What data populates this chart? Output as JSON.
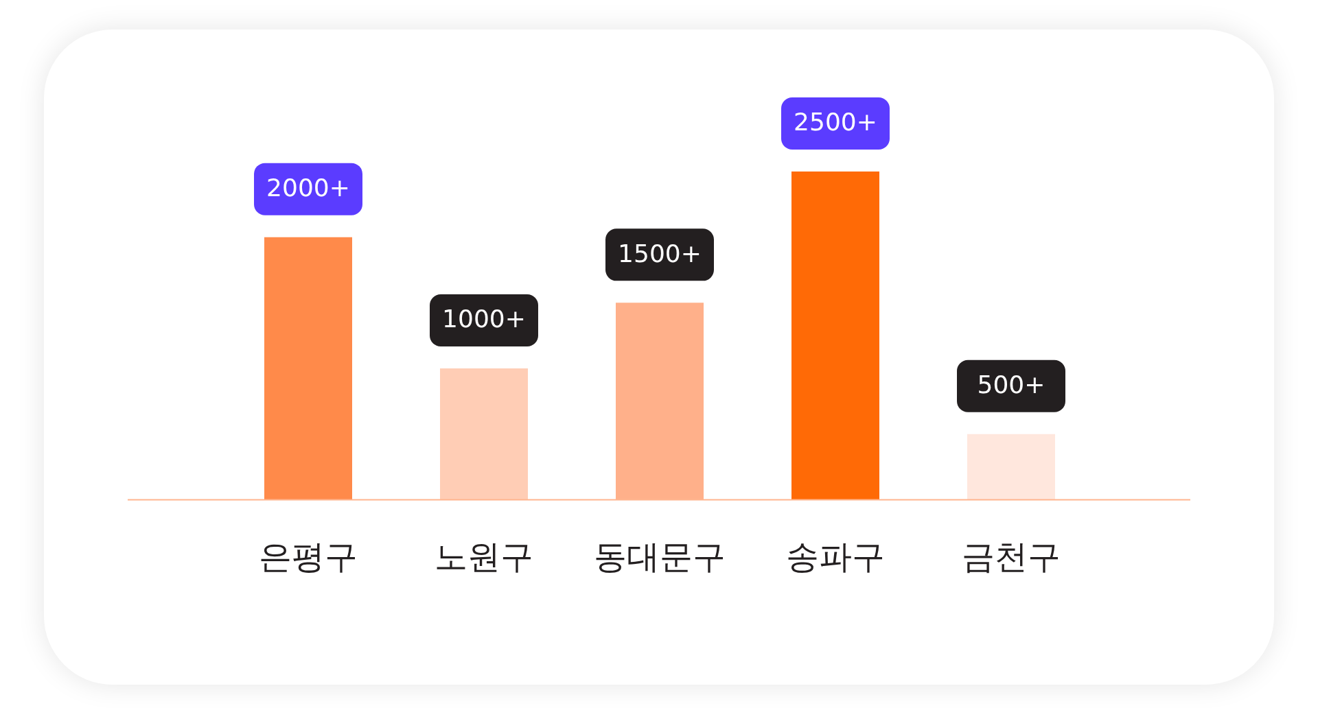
{
  "chart_data": {
    "type": "bar",
    "categories": [
      "은평구",
      "노원구",
      "동대문구",
      "송파구",
      "금천구"
    ],
    "values": [
      2000,
      1000,
      1500,
      2500,
      500
    ],
    "colors": [
      "#ff8a4a",
      "#ffcdb5",
      "#ffb08a",
      "#ff6a06",
      "#ffe7dd"
    ],
    "value_labels": [
      "2000+",
      "1000+",
      "1500+",
      "2500+",
      "500+"
    ],
    "grid": false,
    "legend": false
  }
}
